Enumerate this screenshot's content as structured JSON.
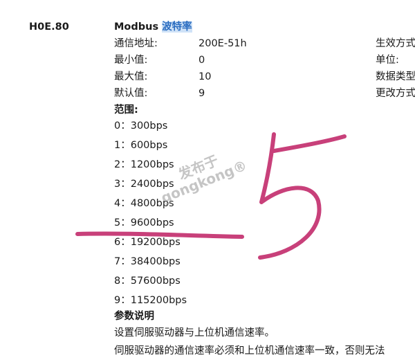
{
  "param_code": "H0E.80",
  "title": {
    "prefix": "Modbus",
    "highlight": "波特率"
  },
  "fields": [
    {
      "label": "通信地址:",
      "value": "200E-51h"
    },
    {
      "label": "最小值:",
      "value": "0"
    },
    {
      "label": "最大值:",
      "value": "10"
    },
    {
      "label": "默认值:",
      "value": "9"
    }
  ],
  "right_labels": [
    "生效方式",
    "单位:",
    "数据类型",
    "更改方式"
  ],
  "range_heading": "范围:",
  "range_items": [
    "0：300bps",
    "1：600bps",
    "2：1200bps",
    "3：2400bps",
    "4：4800bps",
    "5：9600bps",
    "6：19200bps",
    "7：38400bps",
    "8：57600bps",
    "9：115200bps"
  ],
  "desc_heading": "参数说明",
  "desc_lines": [
    "设置伺服驱动器与上位机通信速率。",
    "伺服驱动器的通信速率必须和上位机通信速率一致，否则无法"
  ],
  "watermark": {
    "line1": "发布于",
    "line2": "gongkong®"
  },
  "annotation": {
    "text": "5",
    "color": "#c8407a"
  },
  "highlight_color": "#cfe2f7"
}
